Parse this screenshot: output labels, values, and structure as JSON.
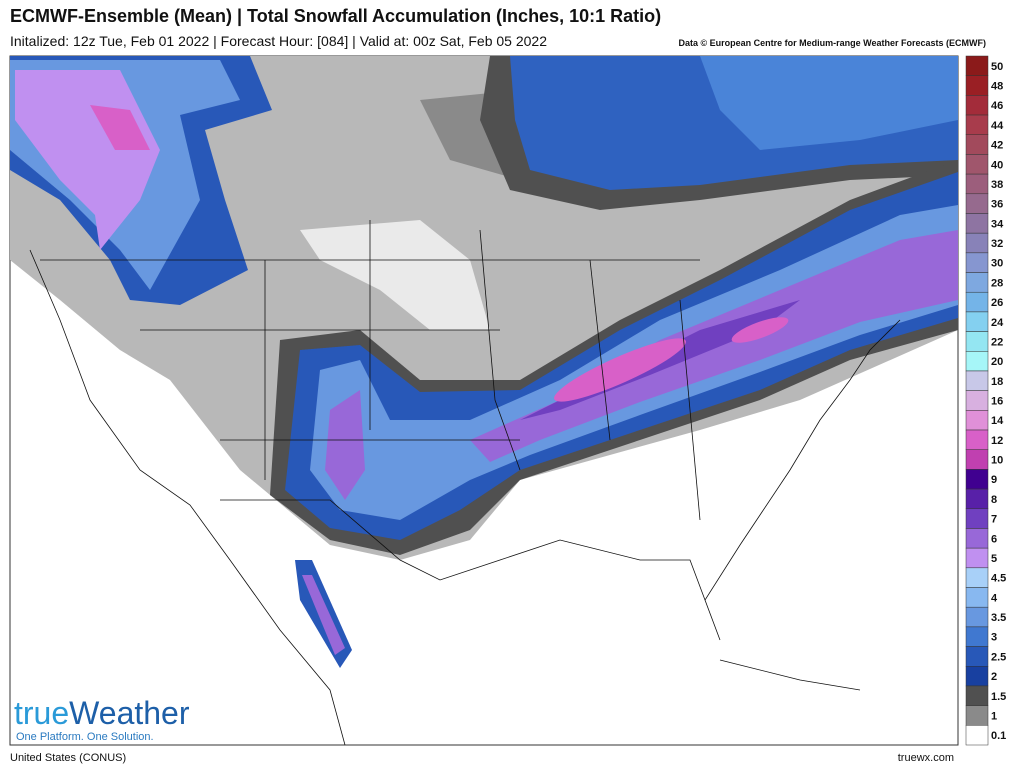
{
  "header": {
    "title": "ECMWF-Ensemble (Mean) | Total Snowfall Accumulation (Inches, 10:1 Ratio)",
    "subtitle": "Initalized: 12z Tue, Feb 01 2022 | Forecast Hour: [084] | Valid at: 00z Sat, Feb 05 2022",
    "credit": "Data © European Centre for Medium-range Weather Forecasts (ECMWF)"
  },
  "logo": {
    "name_a": "true",
    "name_b": "Weather",
    "tagline": "One Platform. One Solution."
  },
  "legend": {
    "items": [
      {
        "label": "50",
        "color": "#8b1a1a"
      },
      {
        "label": "48",
        "color": "#9a1f24"
      },
      {
        "label": "46",
        "color": "#a32c3a"
      },
      {
        "label": "44",
        "color": "#a83c4c"
      },
      {
        "label": "42",
        "color": "#a24a5c"
      },
      {
        "label": "40",
        "color": "#a0566c"
      },
      {
        "label": "38",
        "color": "#9c5e7c"
      },
      {
        "label": "36",
        "color": "#966a8e"
      },
      {
        "label": "34",
        "color": "#8e74a2"
      },
      {
        "label": "32",
        "color": "#8882b8"
      },
      {
        "label": "30",
        "color": "#8696d0"
      },
      {
        "label": "28",
        "color": "#7ea8e0"
      },
      {
        "label": "26",
        "color": "#74b4e8"
      },
      {
        "label": "24",
        "color": "#84d0f0"
      },
      {
        "label": "22",
        "color": "#94e6f2"
      },
      {
        "label": "20",
        "color": "#a6f6f8"
      },
      {
        "label": "18",
        "color": "#c8c8e8"
      },
      {
        "label": "16",
        "color": "#d8b0e0"
      },
      {
        "label": "14",
        "color": "#e090d8"
      },
      {
        "label": "12",
        "color": "#d860c8"
      },
      {
        "label": "10",
        "color": "#c040b0"
      },
      {
        "label": "9",
        "color": "#400090"
      },
      {
        "label": "8",
        "color": "#5820a8"
      },
      {
        "label": "7",
        "color": "#7040c0"
      },
      {
        "label": "6",
        "color": "#9868d8"
      },
      {
        "label": "5",
        "color": "#c090f0"
      },
      {
        "label": "4.5",
        "color": "#a8d0f8"
      },
      {
        "label": "4",
        "color": "#88b8f0"
      },
      {
        "label": "3.5",
        "color": "#6898e0"
      },
      {
        "label": "3",
        "color": "#4078d0"
      },
      {
        "label": "2.5",
        "color": "#2858b8"
      },
      {
        "label": "2",
        "color": "#1840a0"
      },
      {
        "label": "1.5",
        "color": "#505050"
      },
      {
        "label": "1",
        "color": "#8a8a8a"
      },
      {
        "label": "0.1",
        "color": "#ffffff"
      }
    ]
  },
  "footer": {
    "region": "United States (CONUS)",
    "site": "truewx.com"
  }
}
